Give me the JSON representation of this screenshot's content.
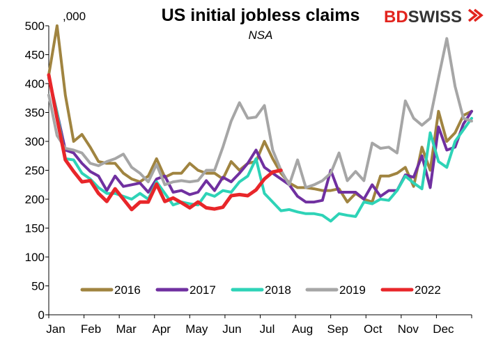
{
  "brand": {
    "part1": "BD",
    "part2": "SWISS",
    "color1": "#e2241e",
    "color2": "#333333",
    "icon": "double-chevron-icon"
  },
  "chart_data": {
    "type": "line",
    "title": "US initial jobless claims",
    "subtitle": "NSA",
    "unit_label": ",000",
    "xlabel": "",
    "ylabel": "",
    "ylim": [
      0,
      500
    ],
    "yticks": [
      0,
      50,
      100,
      150,
      200,
      250,
      300,
      350,
      400,
      450,
      500
    ],
    "xlim": [
      1,
      52
    ],
    "x_unit": "week of year",
    "month_ticks": [
      "Jan",
      "Feb",
      "Mar",
      "Apr",
      "May",
      "Jun",
      "Jul",
      "Aug",
      "Sep",
      "Oct",
      "Nov",
      "Dec"
    ],
    "grid": false,
    "legend_position": "bottom",
    "series": [
      {
        "name": "2016",
        "color": "#a08440",
        "values": [
          415,
          500,
          380,
          300,
          312,
          290,
          265,
          262,
          262,
          245,
          235,
          230,
          240,
          270,
          238,
          245,
          245,
          262,
          250,
          245,
          245,
          235,
          265,
          250,
          262,
          265,
          300,
          270,
          245,
          228,
          220,
          220,
          218,
          215,
          215,
          218,
          195,
          210,
          200,
          195,
          240,
          240,
          245,
          255,
          222,
          290,
          250,
          352,
          300,
          315,
          345,
          352
        ]
      },
      {
        "name": "2017",
        "color": "#7030a0",
        "values": [
          410,
          350,
          285,
          280,
          262,
          248,
          240,
          215,
          240,
          222,
          225,
          228,
          212,
          235,
          240,
          212,
          215,
          208,
          212,
          232,
          215,
          238,
          230,
          245,
          262,
          285,
          255,
          245,
          235,
          225,
          205,
          195,
          195,
          198,
          250,
          212,
          212,
          212,
          200,
          225,
          205,
          215,
          215,
          242,
          238,
          275,
          220,
          325,
          285,
          290,
          330,
          352
        ]
      },
      {
        "name": "2018",
        "color": "#2ed3b7",
        "values": [
          410,
          350,
          270,
          268,
          245,
          235,
          220,
          210,
          210,
          205,
          200,
          210,
          200,
          230,
          210,
          190,
          195,
          192,
          190,
          210,
          205,
          215,
          212,
          230,
          240,
          270,
          210,
          195,
          180,
          182,
          178,
          175,
          175,
          172,
          162,
          175,
          172,
          170,
          195,
          192,
          200,
          198,
          215,
          240,
          228,
          218,
          315,
          265,
          255,
          300,
          320,
          340
        ]
      },
      {
        "name": "2019",
        "color": "#a6a6a6",
        "values": [
          380,
          310,
          288,
          285,
          280,
          262,
          258,
          265,
          270,
          278,
          255,
          245,
          230,
          260,
          225,
          230,
          232,
          230,
          232,
          250,
          250,
          290,
          335,
          367,
          340,
          342,
          362,
          285,
          250,
          225,
          268,
          220,
          225,
          232,
          245,
          280,
          232,
          248,
          232,
          297,
          288,
          290,
          280,
          370,
          340,
          328,
          340,
          410,
          478,
          395,
          340,
          335
        ]
      },
      {
        "name": "2022",
        "color": "#e8262a",
        "values": [
          415,
          340,
          268,
          248,
          230,
          232,
          210,
          196,
          218,
          200,
          182,
          195,
          195,
          226,
          196,
          202,
          194,
          185,
          195,
          185,
          183,
          186,
          206,
          208,
          206,
          216,
          235,
          247,
          250
        ]
      }
    ]
  }
}
